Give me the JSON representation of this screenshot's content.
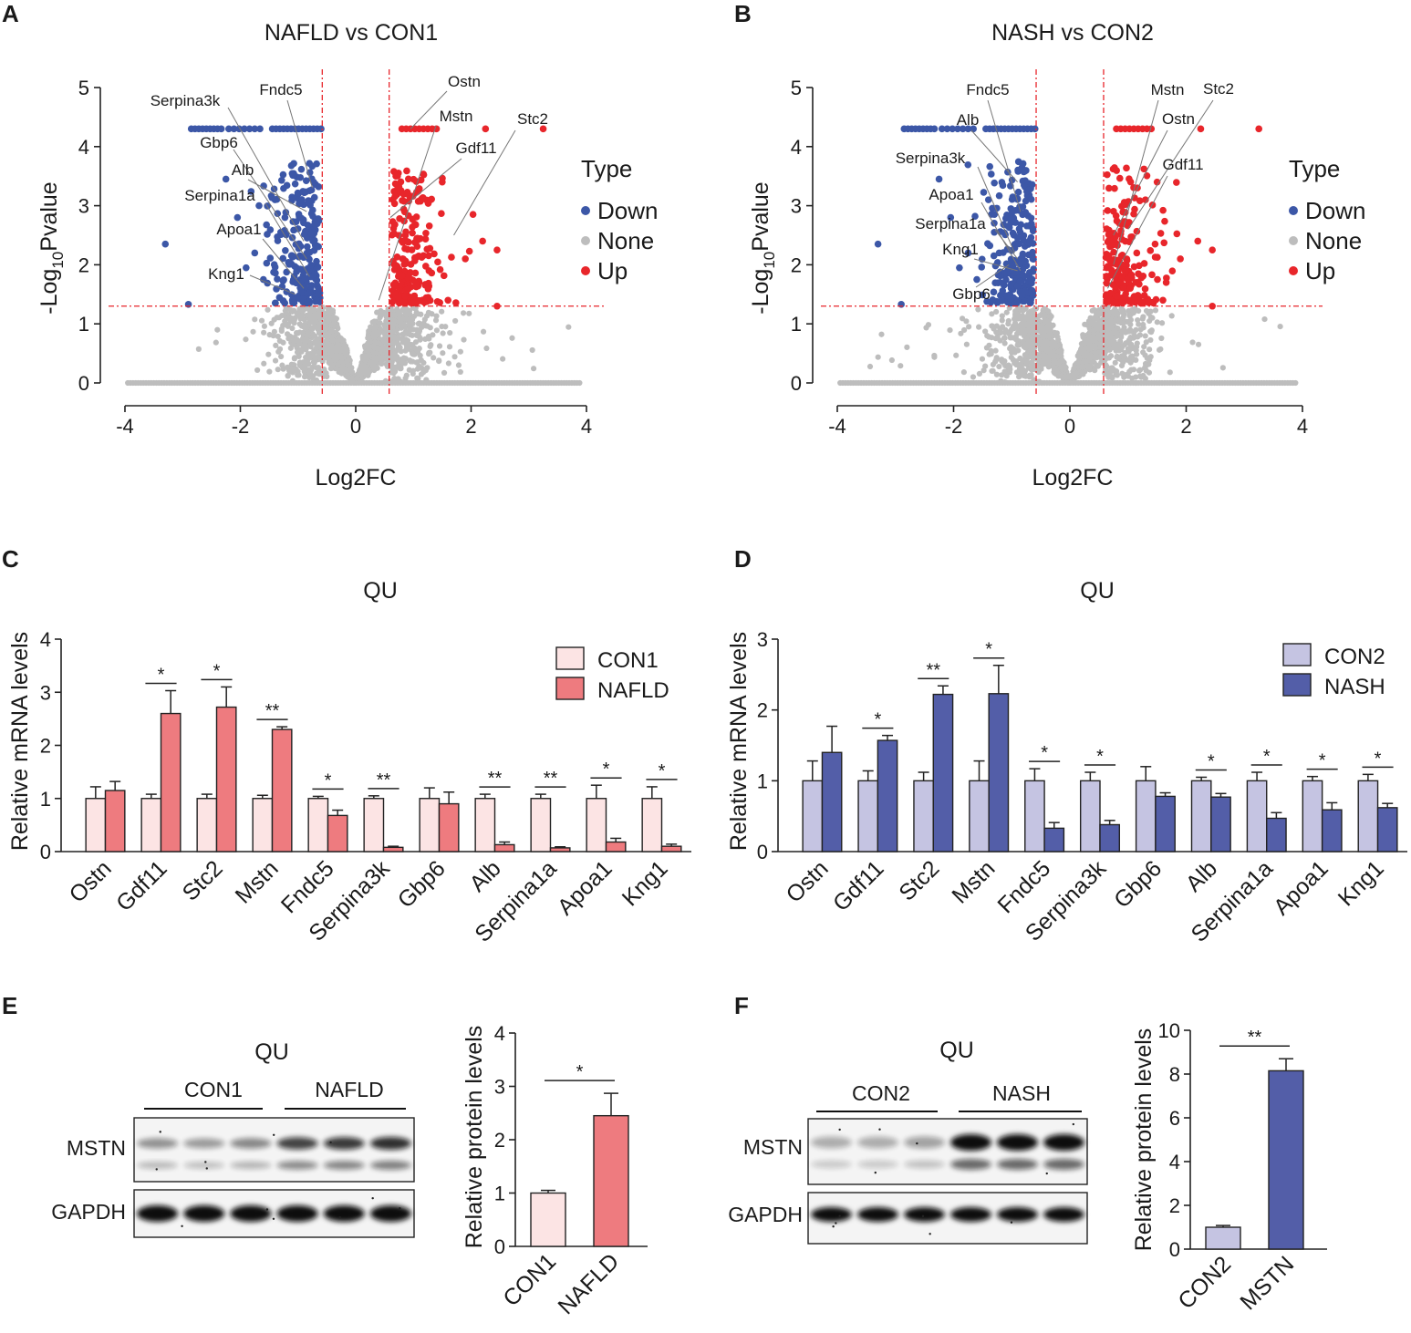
{
  "colors": {
    "down": "#3c57a7",
    "none": "#bdbdbd",
    "up": "#e8262b",
    "con1_fill": "#fce4e4",
    "nafld_fill": "#ee7b7f",
    "con2_fill": "#c5c4e2",
    "nash_fill": "#535ea8",
    "threshold": "#e8262b"
  },
  "panels": {
    "A": {
      "label": "A",
      "chart_data": {
        "type": "scatter",
        "title": "NAFLD vs CON1",
        "xlabel": "Log2FC",
        "ylabel": "-Log10Pvalue",
        "ylabel_parts": [
          "-Log",
          "10",
          "Pvalue"
        ],
        "xlim": [
          -4,
          4
        ],
        "ylim": [
          0,
          5
        ],
        "xticks": [
          "-4",
          "-2",
          "0",
          "2",
          "4"
        ],
        "yticks": [
          "0",
          "1",
          "2",
          "3",
          "4",
          "5"
        ],
        "thresholds": {
          "log2fc": [
            -0.58,
            0.58
          ],
          "neg_log10_p": 1.3
        },
        "legend": {
          "title": "Type",
          "items": [
            "Down",
            "None",
            "Up"
          ]
        },
        "labeled_genes": [
          {
            "name": "Serpina3k",
            "x": -0.9,
            "y": 2.4,
            "side": "down"
          },
          {
            "name": "Fndc5",
            "x": -0.75,
            "y": 3.3,
            "side": "down"
          },
          {
            "name": "Gbp6",
            "x": -0.85,
            "y": 2.1,
            "side": "down"
          },
          {
            "name": "Alb",
            "x": -0.85,
            "y": 2.9,
            "side": "down"
          },
          {
            "name": "Serpina1a",
            "x": -0.8,
            "y": 1.8,
            "side": "down"
          },
          {
            "name": "Apoa1",
            "x": -0.9,
            "y": 1.6,
            "side": "down"
          },
          {
            "name": "Kng1",
            "x": -1.05,
            "y": 1.5,
            "side": "down"
          },
          {
            "name": "Ostn",
            "x": 0.95,
            "y": 4.3,
            "side": "up"
          },
          {
            "name": "Mstn",
            "x": 0.4,
            "y": 1.4,
            "side": "up"
          },
          {
            "name": "Gdf11",
            "x": 0.6,
            "y": 2.8,
            "side": "up"
          },
          {
            "name": "Stc2",
            "x": 1.7,
            "y": 2.5,
            "side": "up"
          }
        ]
      }
    },
    "B": {
      "label": "B",
      "chart_data": {
        "type": "scatter",
        "title": "NASH vs CON2",
        "xlabel": "Log2FC",
        "ylabel": "-Log10Pvalue",
        "ylabel_parts": [
          "-Log",
          "10",
          "Pvalue"
        ],
        "xlim": [
          -4,
          4
        ],
        "ylim": [
          0,
          5
        ],
        "xticks": [
          "-4",
          "-2",
          "0",
          "2",
          "4"
        ],
        "yticks": [
          "0",
          "1",
          "2",
          "3",
          "4",
          "5"
        ],
        "thresholds": {
          "log2fc": [
            -0.58,
            0.58
          ],
          "neg_log10_p": 1.3
        },
        "legend": {
          "title": "Type",
          "items": [
            "Down",
            "None",
            "Up"
          ]
        },
        "labeled_genes": [
          {
            "name": "Fndc5",
            "x": -0.85,
            "y": 2.9,
            "side": "down"
          },
          {
            "name": "Alb",
            "x": -0.9,
            "y": 3.4,
            "side": "down"
          },
          {
            "name": "Serpina3k",
            "x": -0.95,
            "y": 2.2,
            "side": "down"
          },
          {
            "name": "Apoa1",
            "x": -0.85,
            "y": 1.9,
            "side": "down"
          },
          {
            "name": "Serpina1a",
            "x": -0.9,
            "y": 2.1,
            "side": "down"
          },
          {
            "name": "Kng1",
            "x": -0.9,
            "y": 1.9,
            "side": "down"
          },
          {
            "name": "Gbp6",
            "x": -1.05,
            "y": 2.0,
            "side": "down"
          },
          {
            "name": "Mstn",
            "x": 0.75,
            "y": 2.0,
            "side": "up"
          },
          {
            "name": "Ostn",
            "x": 0.75,
            "y": 2.5,
            "side": "up"
          },
          {
            "name": "Gdf11",
            "x": 0.65,
            "y": 1.6,
            "side": "up"
          },
          {
            "name": "Stc2",
            "x": 1.0,
            "y": 2.6,
            "side": "up"
          }
        ]
      }
    },
    "C": {
      "label": "C",
      "chart_data": {
        "type": "bar",
        "title": "QU",
        "ylabel": "Relative mRNA levels",
        "ylim": [
          0,
          4
        ],
        "yticks": [
          "0",
          "1",
          "2",
          "3",
          "4"
        ],
        "categories": [
          "Ostn",
          "Gdf11",
          "Stc2",
          "Mstn",
          "Fndc5",
          "Serpina3k",
          "Gbp6",
          "Alb",
          "Serpina1a",
          "Apoa1",
          "Kng1"
        ],
        "series": [
          {
            "name": "CON1",
            "values": [
              1.0,
              1.0,
              1.0,
              1.0,
              1.0,
              1.0,
              1.0,
              1.0,
              1.0,
              1.0,
              1.0
            ],
            "errors": [
              0.22,
              0.08,
              0.08,
              0.06,
              0.04,
              0.05,
              0.2,
              0.08,
              0.08,
              0.25,
              0.22
            ]
          },
          {
            "name": "NAFLD",
            "values": [
              1.15,
              2.6,
              2.72,
              2.3,
              0.68,
              0.08,
              0.9,
              0.13,
              0.07,
              0.18,
              0.1
            ],
            "errors": [
              0.17,
              0.43,
              0.38,
              0.05,
              0.1,
              0.02,
              0.22,
              0.05,
              0.02,
              0.07,
              0.04
            ]
          }
        ],
        "significance": [
          "",
          "*",
          "*",
          "**",
          "*",
          "**",
          "",
          "**",
          "**",
          "*",
          "*"
        ]
      }
    },
    "D": {
      "label": "D",
      "chart_data": {
        "type": "bar",
        "title": "QU",
        "ylabel": "Relative mRNA levels",
        "ylim": [
          0,
          3
        ],
        "yticks": [
          "0",
          "1",
          "2",
          "3"
        ],
        "categories": [
          "Ostn",
          "Gdf11",
          "Stc2",
          "Mstn",
          "Fndc5",
          "Serpina3k",
          "Gbp6",
          "Alb",
          "Serpina1a",
          "Apoa1",
          "Kng1"
        ],
        "series": [
          {
            "name": "CON2",
            "values": [
              1.0,
              1.0,
              1.0,
              1.0,
              1.0,
              1.0,
              1.0,
              1.0,
              1.0,
              1.0,
              1.0
            ],
            "errors": [
              0.28,
              0.14,
              0.12,
              0.28,
              0.17,
              0.12,
              0.2,
              0.05,
              0.12,
              0.06,
              0.09
            ]
          },
          {
            "name": "NASH",
            "values": [
              1.4,
              1.57,
              2.22,
              2.23,
              0.33,
              0.38,
              0.78,
              0.77,
              0.47,
              0.59,
              0.62
            ],
            "errors": [
              0.37,
              0.07,
              0.12,
              0.4,
              0.08,
              0.06,
              0.05,
              0.05,
              0.08,
              0.1,
              0.06
            ]
          }
        ],
        "significance": [
          "",
          "*",
          "**",
          "*",
          "*",
          "*",
          "",
          "*",
          "*",
          "*",
          "*"
        ]
      }
    },
    "E": {
      "label": "E",
      "blot": {
        "title": "QU",
        "groups": [
          "CON1",
          "NAFLD"
        ],
        "rows": [
          "MSTN",
          "GAPDH"
        ]
      },
      "chart_data": {
        "type": "bar",
        "ylabel": "Relative protein levels",
        "ylim": [
          0,
          4
        ],
        "yticks": [
          "0",
          "1",
          "2",
          "3",
          "4"
        ],
        "categories": [
          "CON1",
          "NAFLD"
        ],
        "values": [
          1.0,
          2.45
        ],
        "errors": [
          0.05,
          0.42
        ],
        "significance": "*"
      }
    },
    "F": {
      "label": "F",
      "blot": {
        "title": "QU",
        "groups": [
          "CON2",
          "NASH"
        ],
        "rows": [
          "MSTN",
          "GAPDH"
        ]
      },
      "chart_data": {
        "type": "bar",
        "ylabel": "Relative protein levels",
        "ylim": [
          0,
          10
        ],
        "yticks": [
          "0",
          "2",
          "4",
          "6",
          "8",
          "10"
        ],
        "categories": [
          "CON2",
          "MSTN"
        ],
        "values": [
          1.0,
          8.15
        ],
        "errors": [
          0.08,
          0.55
        ],
        "significance": "**"
      }
    }
  }
}
